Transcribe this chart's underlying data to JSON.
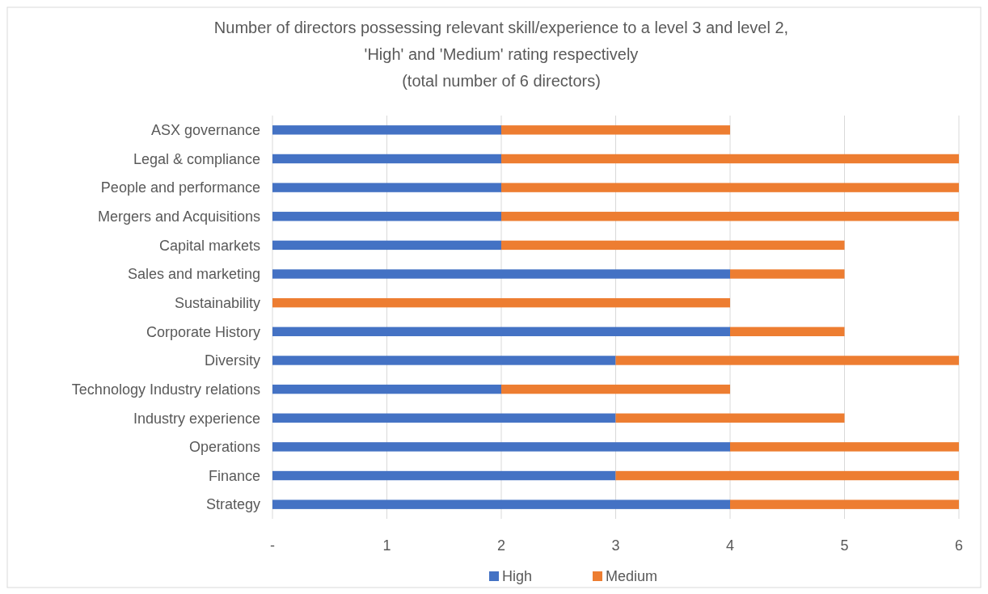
{
  "chart_data": {
    "type": "bar",
    "orientation": "horizontal",
    "stacked": true,
    "title": "Number of directors possessing relevant skill/experience to a level 3 and level 2,\n'High' and 'Medium' rating respectively\n(total number of 6 directors)",
    "categories": [
      "ASX governance",
      "Legal & compliance",
      "People and performance",
      "Mergers and Acquisitions",
      "Capital markets",
      "Sales and marketing",
      "Sustainability",
      "Corporate History",
      "Diversity",
      "Technology Industry relations",
      "Industry experience",
      "Operations",
      "Finance",
      "Strategy"
    ],
    "series": [
      {
        "name": "High",
        "color": "#4472c4",
        "values": [
          2,
          2,
          2,
          2,
          2,
          4,
          0,
          4,
          3,
          2,
          3,
          4,
          3,
          4
        ]
      },
      {
        "name": "Medium",
        "color": "#ed7d31",
        "values": [
          2,
          4,
          4,
          4,
          3,
          1,
          4,
          1,
          3,
          2,
          2,
          2,
          3,
          2
        ]
      }
    ],
    "xlim": [
      0,
      6
    ],
    "xticks": [
      {
        "value": 0,
        "label": "-"
      },
      1,
      2,
      3,
      4,
      5,
      6
    ],
    "grid": "x",
    "legend": "bottom"
  }
}
